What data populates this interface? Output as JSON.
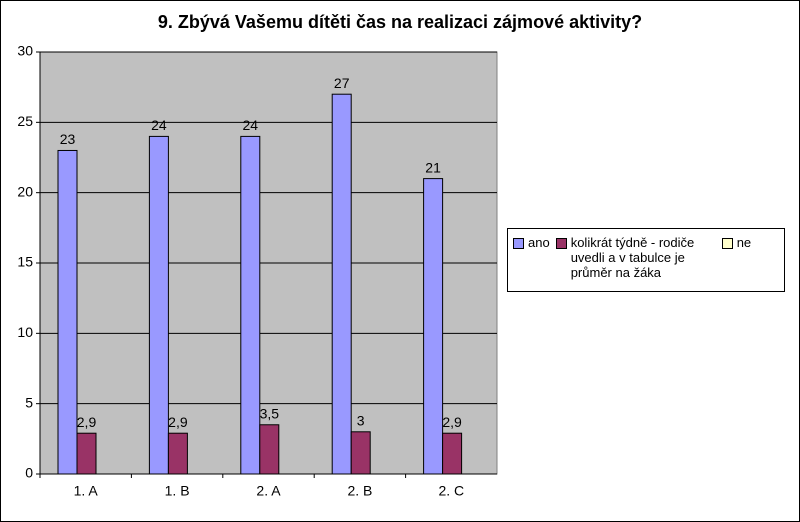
{
  "chart_data": {
    "type": "bar",
    "title": "9. Zbývá Vašemu dítěti čas na realizaci zájmové aktivity?",
    "categories": [
      "1. A",
      "1. B",
      "2. A",
      "2. B",
      "2. C"
    ],
    "series": [
      {
        "name": "ano",
        "color": "#9999ff",
        "values": [
          23,
          24,
          24,
          27,
          21
        ]
      },
      {
        "name": "kolikrát týdně - rodiče uvedli  a v tabulce je průměr na žáka",
        "color": "#993366",
        "values": [
          2.9,
          2.9,
          3.5,
          3,
          2.9
        ],
        "value_labels": [
          "2,9",
          "2,9",
          "3,5",
          "3",
          "2,9"
        ]
      },
      {
        "name": "ne",
        "color": "#ffffcc",
        "values": [
          null,
          null,
          null,
          null,
          null
        ]
      }
    ],
    "ylim": [
      0,
      30
    ],
    "yticks": [
      0,
      5,
      10,
      15,
      20,
      25,
      30
    ],
    "grid": true,
    "plot_background": "#c0c0c0",
    "legend": "right"
  }
}
